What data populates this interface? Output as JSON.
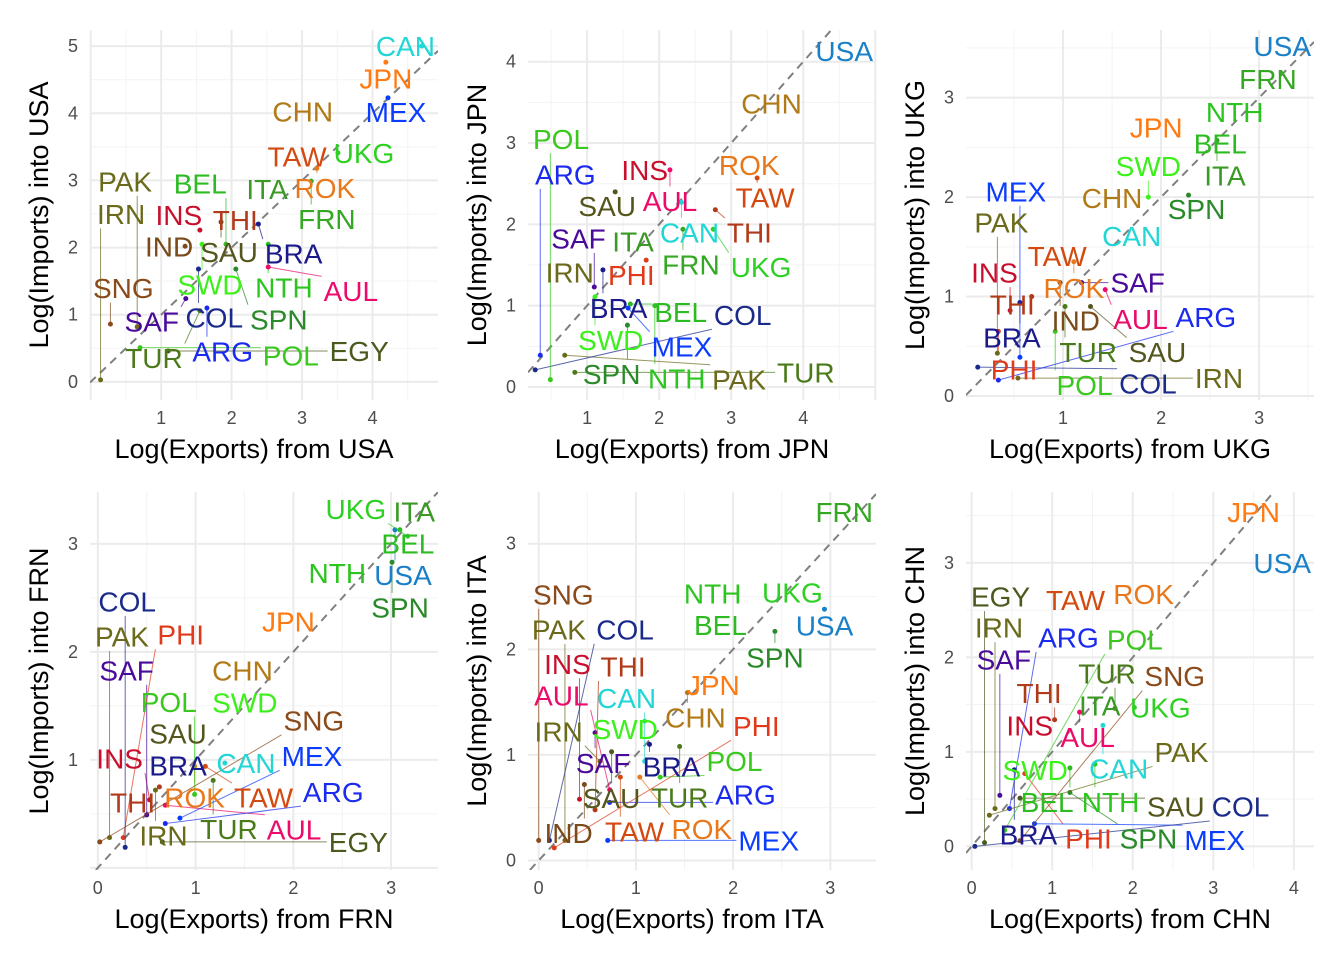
{
  "chart_data": [
    {
      "type": "scatter",
      "xlabel": "Log(Exports) from USA",
      "ylabel": "Log(Imports) into USA",
      "xlim": [
        -0.01,
        4.93
      ],
      "ylim": [
        -0.27,
        5.24
      ],
      "xticks": [
        1,
        2,
        3,
        4
      ],
      "yticks": [
        0,
        1,
        2,
        3,
        4,
        5
      ],
      "grid": true,
      "reference_line": "y = x (dashed)",
      "points": [
        [
          "CAN",
          4.7,
          5.0
        ],
        [
          "JPN",
          4.19,
          4.76
        ],
        [
          "MEX",
          4.22,
          4.23
        ],
        [
          "CHN",
          3.01,
          4.03
        ],
        [
          "TAW",
          2.93,
          3.36
        ],
        [
          "UKG",
          3.51,
          3.41
        ],
        [
          "ROK",
          3.21,
          3.18
        ],
        [
          "FRN",
          3.13,
          2.99
        ],
        [
          "ITA",
          2.43,
          2.92
        ],
        [
          "THI",
          2.01,
          2.49
        ],
        [
          "SAU",
          1.85,
          2.38
        ],
        [
          "BRA",
          2.38,
          2.35
        ],
        [
          "INS",
          1.55,
          2.26
        ],
        [
          "IND",
          1.34,
          2.02
        ],
        [
          "SWD",
          1.58,
          2.05
        ],
        [
          "BEL",
          1.92,
          2.05
        ],
        [
          "NTH",
          2.52,
          2.05
        ],
        [
          "COL",
          1.53,
          1.68
        ],
        [
          "SPN",
          2.06,
          1.68
        ],
        [
          "AUL",
          2.52,
          1.71
        ],
        [
          "SAF",
          1.35,
          1.24
        ],
        [
          "ARG",
          1.65,
          1.1
        ],
        [
          "TUR",
          1.55,
          1.06
        ],
        [
          "SNG",
          0.28,
          0.86
        ],
        [
          "PAK",
          0.66,
          0.82
        ],
        [
          "POL",
          0.7,
          0.51
        ],
        [
          "EGY",
          1.1,
          0.46
        ],
        [
          "IRN",
          0.14,
          0.03
        ]
      ]
    },
    {
      "type": "scatter",
      "xlabel": "Log(Exports) from JPN",
      "ylabel": "Log(Imports) into JPN",
      "xlim": [
        0.18,
        5.01
      ],
      "ylim": [
        -0.16,
        4.39
      ],
      "xticks": [
        1,
        2,
        3,
        4
      ],
      "yticks": [
        0,
        1,
        2,
        3,
        4
      ],
      "grid": true,
      "reference_line": "y = x (dashed)",
      "points": [
        [
          "USA",
          4.72,
          4.13
        ],
        [
          "CHN",
          3.56,
          3.49
        ],
        [
          "INS",
          1.8,
          2.67
        ],
        [
          "AUL",
          2.15,
          2.67
        ],
        [
          "ROK",
          3.25,
          2.73
        ],
        [
          "TAW",
          3.36,
          2.57
        ],
        [
          "SAU",
          1.39,
          2.4
        ],
        [
          "CAN",
          2.31,
          2.27
        ],
        [
          "THI",
          2.78,
          2.18
        ],
        [
          "FRN",
          2.33,
          1.94
        ],
        [
          "UKG",
          2.75,
          1.94
        ],
        [
          "ITA",
          1.71,
          1.83
        ],
        [
          "PHI",
          1.82,
          1.56
        ],
        [
          "IRN",
          0.76,
          1.41
        ],
        [
          "BRA",
          1.22,
          1.44
        ],
        [
          "SAF",
          1.1,
          1.23
        ],
        [
          "SWD",
          1.11,
          1.11
        ],
        [
          "BEL",
          1.6,
          1.02
        ],
        [
          "MEX",
          1.57,
          0.97
        ],
        [
          "NTH",
          1.94,
          1.0
        ],
        [
          "SPN",
          1.56,
          0.76
        ],
        [
          "ARG",
          0.35,
          0.39
        ],
        [
          "PAK",
          0.69,
          0.39
        ],
        [
          "COL",
          0.28,
          0.21
        ],
        [
          "TUR",
          0.83,
          0.18
        ],
        [
          "POL",
          0.49,
          0.09
        ]
      ]
    },
    {
      "type": "scatter",
      "xlabel": "Log(Exports) from UKG",
      "ylabel": "Log(Imports) into UKG",
      "xlim": [
        0.01,
        3.56
      ],
      "ylim": [
        -0.04,
        3.68
      ],
      "xticks": [
        1,
        2,
        3
      ],
      "yticks": [
        0,
        1,
        2,
        3
      ],
      "grid": true,
      "reference_line": "y = x (dashed)",
      "points": [
        [
          "USA",
          3.34,
          3.52
        ],
        [
          "FRN",
          3.09,
          3.19
        ],
        [
          "NTH",
          2.72,
          2.91
        ],
        [
          "JPN",
          1.95,
          2.7
        ],
        [
          "BEL",
          2.55,
          2.57
        ],
        [
          "ITA",
          2.57,
          2.57
        ],
        [
          "CHN",
          1.5,
          1.99
        ],
        [
          "SWD",
          1.87,
          2.0
        ],
        [
          "SPN",
          2.28,
          2.02
        ],
        [
          "CAN",
          1.7,
          1.61
        ],
        [
          "TAW",
          0.94,
          1.41
        ],
        [
          "ROK",
          1.11,
          1.35
        ],
        [
          "IND",
          0.97,
          1.14
        ],
        [
          "SAF",
          1.19,
          1.14
        ],
        [
          "AUL",
          1.43,
          1.07
        ],
        [
          "THI",
          0.68,
          1.0
        ],
        [
          "BRA",
          0.56,
          0.94
        ],
        [
          "INS",
          0.46,
          0.86
        ],
        [
          "TUR",
          1.02,
          0.9
        ],
        [
          "SAU",
          1.28,
          0.9
        ],
        [
          "PHI",
          0.34,
          0.65
        ],
        [
          "POL",
          0.92,
          0.65
        ],
        [
          "PAK",
          0.33,
          0.43
        ],
        [
          "MEX",
          0.56,
          0.39
        ],
        [
          "COL",
          0.13,
          0.29
        ],
        [
          "ARG",
          0.34,
          0.16
        ],
        [
          "IRN",
          0.54,
          0.18
        ]
      ]
    },
    {
      "type": "scatter",
      "xlabel": "Log(Exports) from FRN",
      "ylabel": "Log(Imports) into FRN",
      "xlim": [
        -0.08,
        3.48
      ],
      "ylim": [
        -0.02,
        3.48
      ],
      "xticks": [
        0,
        1,
        2,
        3
      ],
      "yticks": [
        1,
        2,
        3
      ],
      "grid": true,
      "reference_line": "y = x (dashed)",
      "points": [
        [
          "ITA",
          3.3,
          3.3
        ],
        [
          "BEL",
          3.09,
          3.13
        ],
        [
          "USA",
          3.04,
          3.13
        ],
        [
          "UKG",
          3.17,
          3.07
        ],
        [
          "SPN",
          3.01,
          2.83
        ],
        [
          "NTH",
          2.45,
          2.73
        ],
        [
          "JPN",
          1.95,
          2.28
        ],
        [
          "CHN",
          1.48,
          1.83
        ],
        [
          "SWD",
          1.45,
          1.56
        ],
        [
          "SAU",
          0.82,
          1.3
        ],
        [
          "BRA",
          0.82,
          1.05
        ],
        [
          "CAN",
          1.3,
          0.97
        ],
        [
          "ROK",
          0.99,
          0.94
        ],
        [
          "TAW",
          1.1,
          0.94
        ],
        [
          "TUR",
          1.18,
          0.81
        ],
        [
          "THI",
          0.63,
          0.75
        ],
        [
          "IRN",
          0.59,
          0.72
        ],
        [
          "POL",
          0.99,
          0.68
        ],
        [
          "INS",
          0.53,
          0.63
        ],
        [
          "AUL",
          0.69,
          0.58
        ],
        [
          "SAF",
          0.5,
          0.49
        ],
        [
          "MEX",
          0.84,
          0.46
        ],
        [
          "ARG",
          0.69,
          0.41
        ],
        [
          "PAK",
          0.12,
          0.28
        ],
        [
          "PHI",
          0.26,
          0.28
        ],
        [
          "SNG",
          0.02,
          0.24
        ],
        [
          "EGY",
          0.66,
          0.24
        ],
        [
          "COL",
          0.28,
          0.19
        ]
      ]
    },
    {
      "type": "scatter",
      "xlabel": "Log(Exports) from ITA",
      "ylabel": "Log(Imports) into ITA",
      "xlim": [
        -0.11,
        3.47
      ],
      "ylim": [
        -0.09,
        3.49
      ],
      "xticks": [
        0,
        1,
        2,
        3
      ],
      "yticks": [
        0,
        1,
        2,
        3
      ],
      "grid": true,
      "reference_line": "y = x (dashed)",
      "points": [
        [
          "FRN",
          3.23,
          3.3
        ],
        [
          "NTH",
          1.79,
          2.53
        ],
        [
          "UKG",
          2.61,
          2.54
        ],
        [
          "USA",
          2.94,
          2.38
        ],
        [
          "BEL",
          1.87,
          2.29
        ],
        [
          "SPN",
          2.43,
          2.17
        ],
        [
          "JPN",
          1.85,
          1.69
        ],
        [
          "CHN",
          1.53,
          1.59
        ],
        [
          "SWD",
          1.09,
          1.32
        ],
        [
          "SAF",
          0.58,
          1.21
        ],
        [
          "BRA",
          1.14,
          1.1
        ],
        [
          "TUR",
          1.45,
          1.08
        ],
        [
          "SAU",
          0.75,
          1.03
        ],
        [
          "IRN",
          0.63,
          0.94
        ],
        [
          "CAN",
          1.09,
          0.94
        ],
        [
          "TAW",
          0.84,
          0.79
        ],
        [
          "ROK",
          1.04,
          0.79
        ],
        [
          "POL",
          1.25,
          0.79
        ],
        [
          "IND",
          0.47,
          0.72
        ],
        [
          "AUL",
          0.73,
          0.67
        ],
        [
          "INS",
          0.42,
          0.58
        ],
        [
          "ARG",
          0.73,
          0.55
        ],
        [
          "THI",
          0.58,
          0.48
        ],
        [
          "MEX",
          0.71,
          0.19
        ],
        [
          "PAK",
          0.27,
          0.19
        ],
        [
          "COL",
          0.11,
          0.19
        ],
        [
          "PHI",
          0.16,
          0.12
        ],
        [
          "SNG",
          0.0,
          0.19
        ]
      ]
    },
    {
      "type": "scatter",
      "xlabel": "Log(Exports) from CHN",
      "ylabel": "Log(Imports) into CHN",
      "xlim": [
        -0.07,
        4.25
      ],
      "ylim": [
        -0.25,
        3.75
      ],
      "xticks": [
        0,
        1,
        2,
        3,
        4
      ],
      "yticks": [
        0,
        1,
        2,
        3
      ],
      "grid": true,
      "reference_line": "y = x (dashed)",
      "points": [
        [
          "JPN",
          3.5,
          3.54
        ],
        [
          "USA",
          3.98,
          3.0
        ],
        [
          "TAW",
          1.29,
          2.61
        ],
        [
          "ROK",
          2.06,
          2.67
        ],
        [
          "ITA",
          1.59,
          1.49
        ],
        [
          "AUL",
          1.34,
          1.42
        ],
        [
          "TUR",
          1.78,
          1.46
        ],
        [
          "UKG",
          2.02,
          1.47
        ],
        [
          "INS",
          0.84,
          1.34
        ],
        [
          "THI",
          1.03,
          1.34
        ],
        [
          "CAN",
          1.63,
          1.28
        ],
        [
          "SWD",
          0.72,
          0.91
        ],
        [
          "NTH",
          1.53,
          0.87
        ],
        [
          "BEL",
          1.22,
          0.83
        ],
        [
          "BRA",
          0.53,
          0.81
        ],
        [
          "PHI",
          0.66,
          0.77
        ],
        [
          "SPN",
          1.22,
          0.57
        ],
        [
          "SAF",
          0.35,
          0.54
        ],
        [
          "SAU",
          0.6,
          0.51
        ],
        [
          "IRN",
          0.29,
          0.4
        ],
        [
          "ARG",
          0.47,
          0.4
        ],
        [
          "PAK",
          0.22,
          0.33
        ],
        [
          "MEX",
          0.78,
          0.24
        ],
        [
          "POL",
          0.41,
          0.17
        ],
        [
          "SNG",
          0.6,
          0.06
        ],
        [
          "EGY",
          0.16,
          0.04
        ],
        [
          "COL",
          0.04,
          0.0
        ]
      ]
    }
  ],
  "colors": {
    "CAN": "#22d6d6",
    "JPN": "#ff7a12",
    "MEX": "#0a3cff",
    "CHN": "#b07a17",
    "TAW": "#d4490f",
    "UKG": "#2ed024",
    "ROK": "#e8781a",
    "FRN": "#34a822",
    "ITA": "#3a9a25",
    "THI": "#b03a1a",
    "SAU": "#55551e",
    "BRA": "#1a1a8a",
    "INS": "#c8102e",
    "IND": "#7a4a1a",
    "SWD": "#3cf01a",
    "BEL": "#2cbc22",
    "NTH": "#2cc41e",
    "COL": "#1a2a8a",
    "SPN": "#2a8a2a",
    "AUL": "#ec0a6a",
    "SAF": "#4a0a9a",
    "ARG": "#1a2aee",
    "TUR": "#4a7a1a",
    "SNG": "#8a4a1a",
    "PAK": "#6a6a1a",
    "POL": "#3ac81e",
    "EGY": "#4a5a1e",
    "IRN": "#6a6a1a",
    "USA": "#1a80c8",
    "PHI": "#e03a1a"
  }
}
